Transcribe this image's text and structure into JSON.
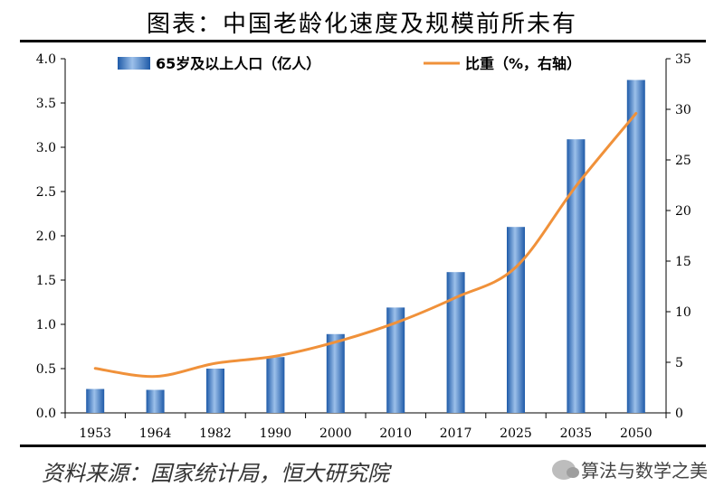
{
  "header": {
    "title": "图表：中国老龄化速度及规模前所未有"
  },
  "footer": {
    "source": "资料来源：国家统计局，恒大研究院",
    "watermark": "算法与数学之美"
  },
  "chart_data": {
    "type": "bar",
    "categories": [
      "1953",
      "1964",
      "1982",
      "1990",
      "2000",
      "2010",
      "2017",
      "2025",
      "2035",
      "2050"
    ],
    "series": [
      {
        "name": "65岁及以上人口（亿人）",
        "type": "bar",
        "axis": "left",
        "values": [
          0.27,
          0.26,
          0.5,
          0.63,
          0.89,
          1.19,
          1.59,
          2.1,
          3.09,
          3.76
        ]
      },
      {
        "name": "比重（%，右轴）",
        "type": "line",
        "axis": "right",
        "values": [
          4.4,
          3.6,
          4.9,
          5.6,
          7.0,
          8.9,
          11.4,
          14.4,
          22.4,
          29.6
        ]
      }
    ],
    "y_left": {
      "min": 0,
      "max": 4.0,
      "ticks": [
        "0.0",
        "0.5",
        "1.0",
        "1.5",
        "2.0",
        "2.5",
        "3.0",
        "3.5",
        "4.0"
      ]
    },
    "y_right": {
      "min": 0,
      "max": 35,
      "ticks": [
        "0",
        "5",
        "10",
        "15",
        "20",
        "25",
        "30",
        "35"
      ]
    },
    "legend_position": "top",
    "colors": {
      "bar": "#2f6cb5",
      "bar_light": "#9cc0ea",
      "line": "#f0913a"
    }
  }
}
